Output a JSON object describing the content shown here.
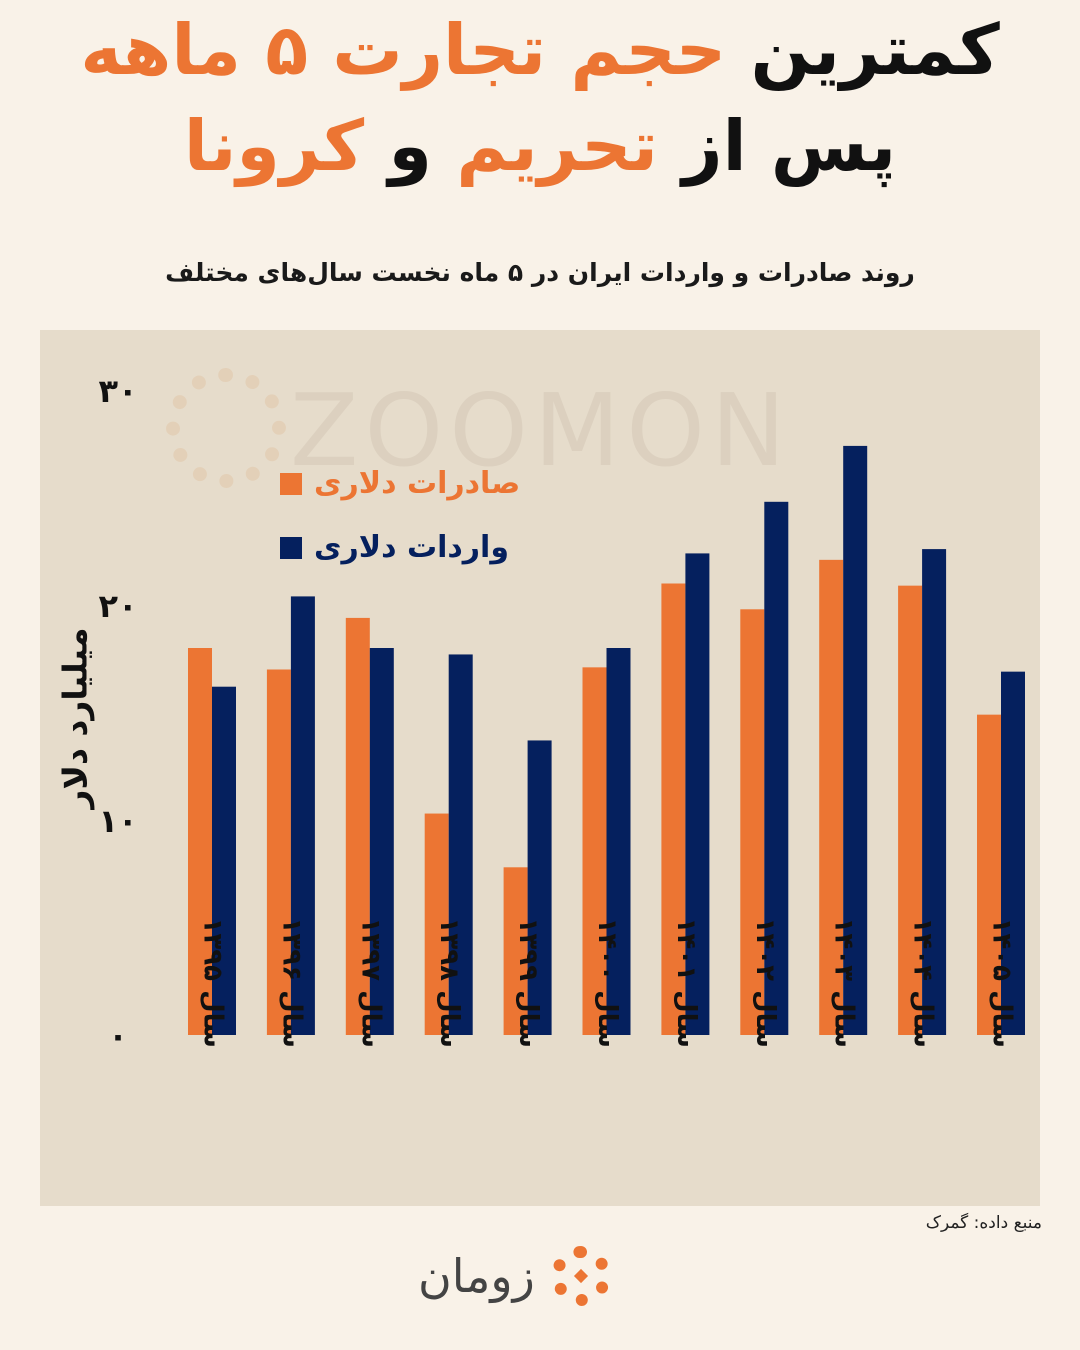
{
  "headline": {
    "line1_black": "کمترین",
    "line1_orange": "حجم تجارت ۵ ماهه",
    "line2_black_a": "پس از",
    "line2_orange_a": "تحریم",
    "line2_black_b": "و",
    "line2_orange_b": "کرونا"
  },
  "source": "منبع داده: گمرک",
  "brand": {
    "name": "زومان",
    "watermark": "ZOOMON",
    "logo_icon": "sunburst-logo-icon"
  },
  "colors": {
    "background": "#f9f2e8",
    "panel": "#e6dccb",
    "exports": "#ec7533",
    "imports": "#05205e",
    "accent": "#ec7533"
  },
  "chart_data": {
    "type": "bar",
    "title": "روند صادرات و واردات ایران در ۵ ماه نخست سال‌های مختلف",
    "ylabel": "میلیارد دلار",
    "xlabel": "",
    "ylim": [
      0,
      30
    ],
    "yticks": [
      0,
      10,
      20,
      30
    ],
    "ytick_labels": [
      "۰",
      "۱۰",
      "۲۰",
      "۳۰"
    ],
    "grid": false,
    "legend_position": "top-left",
    "categories": [
      "سال ۱۳۹۵",
      "سال ۱۳۹۶",
      "سال ۱۳۹۷",
      "سال ۱۳۹۸",
      "سال ۱۳۹۹",
      "سال ۱۴۰۰",
      "سال ۱۴۰۱",
      "سال ۱۴۰۲",
      "سال ۱۴۰۳",
      "سال ۱۴۰۴",
      "سال ۱۴۰۵"
    ],
    "series": [
      {
        "name": "صادرات دلاری",
        "color": "#ec7533",
        "values": [
          18.0,
          17.0,
          19.4,
          10.3,
          7.8,
          17.1,
          21.0,
          19.8,
          22.1,
          20.9,
          14.9
        ]
      },
      {
        "name": "واردات دلاری",
        "color": "#05205e",
        "values": [
          16.2,
          20.4,
          18.0,
          17.7,
          13.7,
          18.0,
          22.4,
          24.8,
          27.4,
          22.6,
          16.9
        ]
      }
    ]
  }
}
